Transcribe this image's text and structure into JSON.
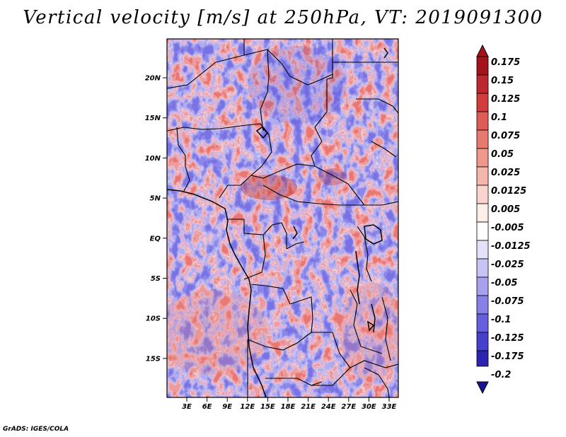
{
  "title": "Vertical velocity [m/s] at 250hPa, VT: 2019091300",
  "footer": "GrADS: IGES/COLA",
  "map": {
    "lat_labels": [
      "20N",
      "15N",
      "10N",
      "5N",
      "EQ",
      "5S",
      "10S",
      "15S"
    ],
    "lon_labels": [
      "3E",
      "6E",
      "9E",
      "12E",
      "15E",
      "18E",
      "21E",
      "24E",
      "27E",
      "30E",
      "33E"
    ]
  },
  "colorbar": {
    "labels": [
      "0.175",
      "0.15",
      "0.125",
      "0.1",
      "0.075",
      "0.05",
      "0.025",
      "0.0125",
      "0.005",
      "-0.005",
      "-0.0125",
      "-0.025",
      "-0.05",
      "-0.075",
      "-0.1",
      "-0.125",
      "-0.175",
      "-0.2"
    ],
    "colors": [
      "#a2141a",
      "#bd2830",
      "#d23c3c",
      "#e05a56",
      "#e8796e",
      "#ef988c",
      "#f5b7ad",
      "#fad4cc",
      "#fdeeea",
      "#ffffff",
      "#e4e2fb",
      "#c7c3f5",
      "#a8a2ee",
      "#8780e6",
      "#655ede",
      "#4740cc",
      "#2c24b0",
      "#1a1296"
    ]
  }
}
